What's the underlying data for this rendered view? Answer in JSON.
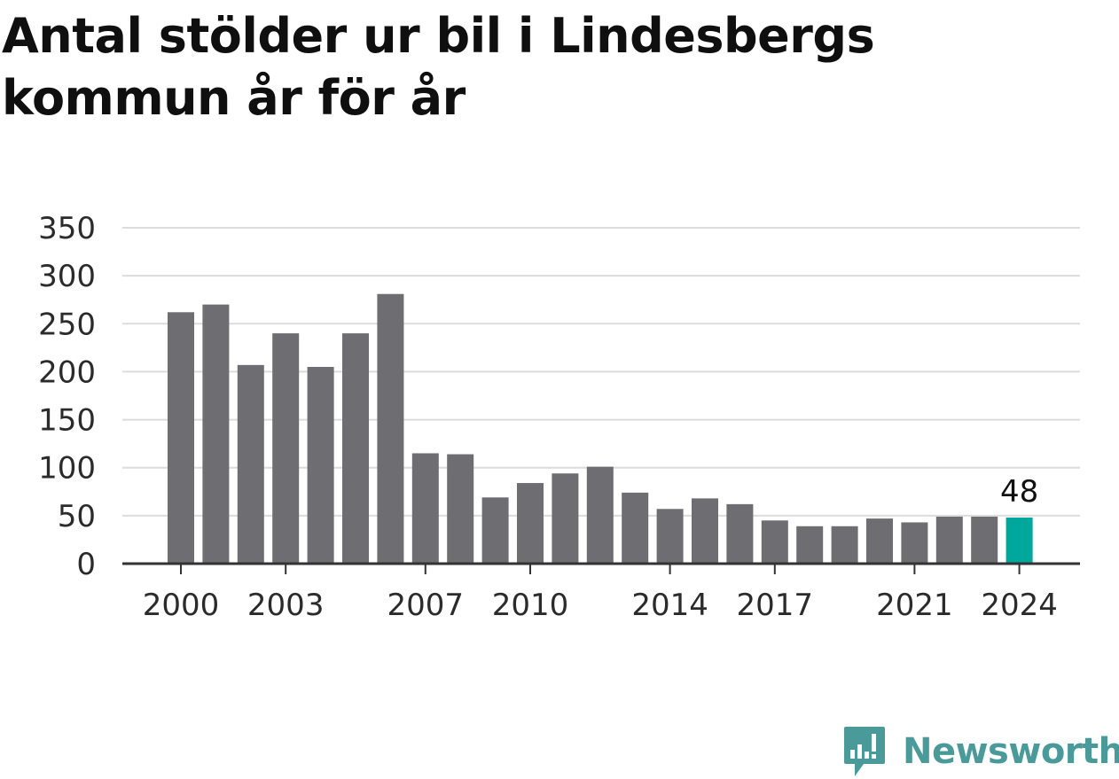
{
  "title": "Antal stölder ur bil i Lindesbergs kommun år för år",
  "brand": "Newsworthy",
  "colors": {
    "bar": "#6e6d72",
    "highlight": "#00a79d",
    "grid": "#dcdcdc",
    "axis": "#333333",
    "logo": "#4a9a9a"
  },
  "chart_data": {
    "type": "bar",
    "title": "Antal stölder ur bil i Lindesbergs kommun år för år",
    "xlabel": "",
    "ylabel": "",
    "categories": [
      "2000",
      "2001",
      "2002",
      "2003",
      "2004",
      "2005",
      "2006",
      "2007",
      "2008",
      "2009",
      "2010",
      "2011",
      "2012",
      "2013",
      "2014",
      "2015",
      "2016",
      "2017",
      "2018",
      "2019",
      "2020",
      "2021",
      "2022",
      "2023",
      "2024"
    ],
    "values": [
      262,
      270,
      207,
      240,
      205,
      240,
      281,
      115,
      114,
      69,
      84,
      94,
      101,
      74,
      57,
      68,
      62,
      45,
      39,
      39,
      47,
      43,
      49,
      49,
      48
    ],
    "ylim": [
      0,
      350
    ],
    "yticks": [
      "0",
      "50",
      "100",
      "150",
      "200",
      "250",
      "300",
      "350"
    ],
    "xtick_labels": [
      "2000",
      "2003",
      "2007",
      "2010",
      "2014",
      "2017",
      "2021",
      "2024"
    ],
    "highlight": "2024",
    "data_labels": [
      {
        "category": "2024",
        "text": "48"
      }
    ],
    "grid": true
  }
}
